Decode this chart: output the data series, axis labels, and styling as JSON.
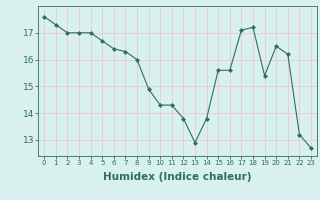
{
  "x": [
    0,
    1,
    2,
    3,
    4,
    5,
    6,
    7,
    8,
    9,
    10,
    11,
    12,
    13,
    14,
    15,
    16,
    17,
    18,
    19,
    20,
    21,
    22,
    23
  ],
  "y": [
    17.6,
    17.3,
    17.0,
    17.0,
    17.0,
    16.7,
    16.4,
    16.3,
    16.0,
    14.9,
    14.3,
    14.3,
    13.8,
    12.9,
    13.8,
    15.6,
    15.6,
    17.1,
    17.2,
    15.4,
    16.5,
    16.2,
    13.2,
    12.7
  ],
  "line_color": "#2e6e65",
  "marker": "D",
  "marker_size": 2.0,
  "bg_color": "#d8f0ee",
  "grid_color": "#f0c8c8",
  "tick_color": "#2e6e65",
  "xlabel": "Humidex (Indice chaleur)",
  "xlabel_fontsize": 7.5,
  "ylabel_ticks": [
    13,
    14,
    15,
    16,
    17
  ],
  "xlim": [
    -0.5,
    23.5
  ],
  "ylim": [
    12.4,
    18.0
  ]
}
